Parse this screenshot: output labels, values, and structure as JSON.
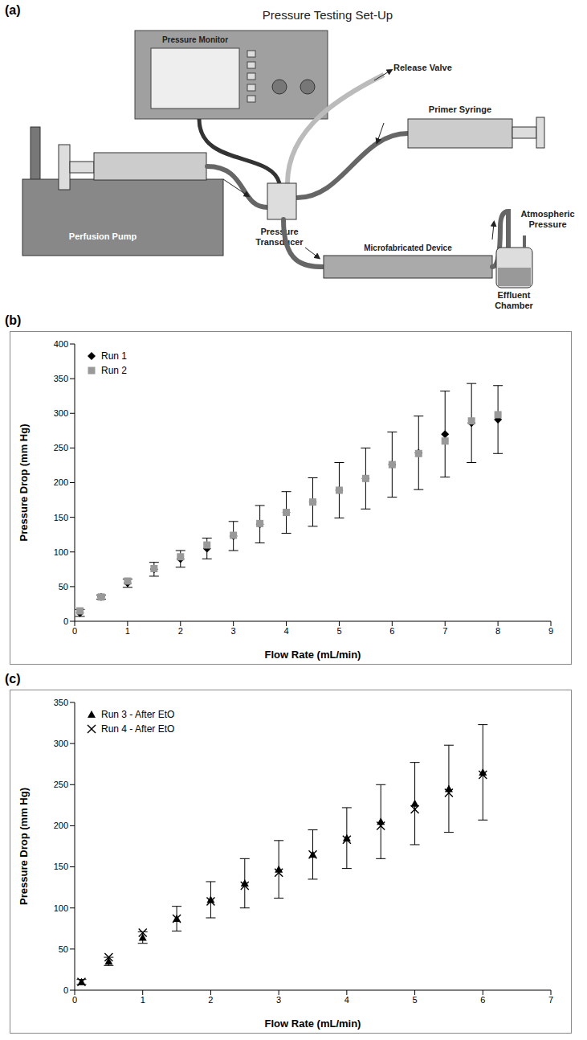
{
  "diagram": {
    "panel_label": "(a)",
    "title": "Pressure Testing Set-Up",
    "components": {
      "pressure_monitor": "Pressure Monitor",
      "release_valve": "Release Valve",
      "primer_syringe": "Primer Syringe",
      "perfusion_pump": "Perfusion Pump",
      "pressure_transducer": "Pressure Transducer",
      "device": "Microfabricated Device",
      "atmospheric": "Atmospheric Pressure",
      "effluent": "Effluent Chamber"
    }
  },
  "chart_data": [
    {
      "type": "scatter",
      "panel_label": "(b)",
      "x_label": "Flow Rate (mL/min)",
      "y_label": "Pressure Drop (mm Hg)",
      "xlim": [
        0,
        9
      ],
      "xticks": [
        0,
        1,
        2,
        3,
        4,
        5,
        6,
        7,
        8,
        9
      ],
      "ylim": [
        0,
        400
      ],
      "yticks": [
        0,
        50,
        100,
        150,
        200,
        250,
        300,
        350,
        400
      ],
      "legend": "upper left",
      "x": [
        0.1,
        0.5,
        1,
        1.5,
        2,
        2.5,
        3,
        3.5,
        4,
        4.5,
        5,
        5.5,
        6,
        6.5,
        7,
        7.5,
        8
      ],
      "series": [
        {
          "name": "Run 1",
          "color": "#000000",
          "marker": "diamond",
          "values": [
            12,
            35,
            55,
            75,
            90,
            105,
            123,
            140,
            157,
            172,
            189,
            206,
            226,
            243,
            270,
            286,
            291
          ],
          "errors": [
            5,
            3,
            6,
            10,
            12,
            15,
            21,
            27,
            30,
            35,
            40,
            44,
            47,
            53,
            62,
            57,
            49
          ]
        },
        {
          "name": "Run 2",
          "color": "#999999",
          "marker": "square",
          "values": [
            15,
            35,
            58,
            76,
            93,
            110,
            124,
            141,
            157,
            172,
            189,
            206,
            226,
            242,
            260,
            289,
            298
          ]
        }
      ]
    },
    {
      "type": "scatter",
      "panel_label": "(c)",
      "x_label": "Flow Rate (mL/min)",
      "y_label": "Pressure Drop (mm Hg)",
      "xlim": [
        0,
        7
      ],
      "xticks": [
        0,
        1,
        2,
        3,
        4,
        5,
        6,
        7
      ],
      "ylim": [
        0,
        350
      ],
      "yticks": [
        0,
        50,
        100,
        150,
        200,
        250,
        300,
        350
      ],
      "legend": "upper left",
      "x": [
        0.1,
        0.5,
        1,
        1.5,
        2,
        2.5,
        3,
        3.5,
        4,
        4.5,
        5,
        5.5,
        6
      ],
      "series": [
        {
          "name": "Run 3 - After EtO",
          "color": "#000000",
          "marker": "triangle",
          "values": [
            10,
            35,
            64,
            87,
            110,
            130,
            147,
            165,
            185,
            205,
            227,
            245,
            265
          ],
          "errors": [
            3,
            5,
            7,
            15,
            22,
            30,
            35,
            30,
            37,
            45,
            50,
            53,
            58
          ]
        },
        {
          "name": "Run 4 - After EtO",
          "color": "#000000",
          "marker": "x",
          "values": [
            10,
            40,
            70,
            87,
            108,
            127,
            143,
            165,
            183,
            200,
            220,
            240,
            262
          ]
        }
      ]
    }
  ]
}
